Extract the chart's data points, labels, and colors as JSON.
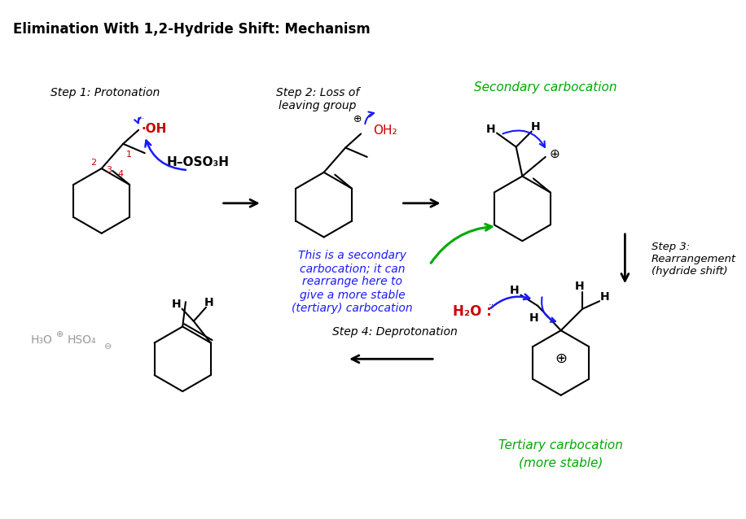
{
  "title": "Elimination With 1,2-Hydride Shift: Mechanism",
  "bg_color": "#ffffff",
  "step1_label": "Step 1: Protonation",
  "step2_label_1": "Step 2: Loss of",
  "step2_label_2": "leaving group",
  "step3_label": "Step 3:\nRearrangement\n(hydride shift)",
  "step4_label": "Step 4: Deprotonation",
  "secondary_label": "Secondary carbocation",
  "tertiary_label_1": "Tertiary carbocation",
  "tertiary_label_2": "(more stable)",
  "middle_text": "This is a secondary\ncarbocation; it can\nrearrange here to\ngive a more stable\n(tertiary) carbocation",
  "black": "#000000",
  "red": "#cc0000",
  "blue": "#1a1aff",
  "green": "#00aa00",
  "gray": "#999999",
  "title_fontsize": 13
}
